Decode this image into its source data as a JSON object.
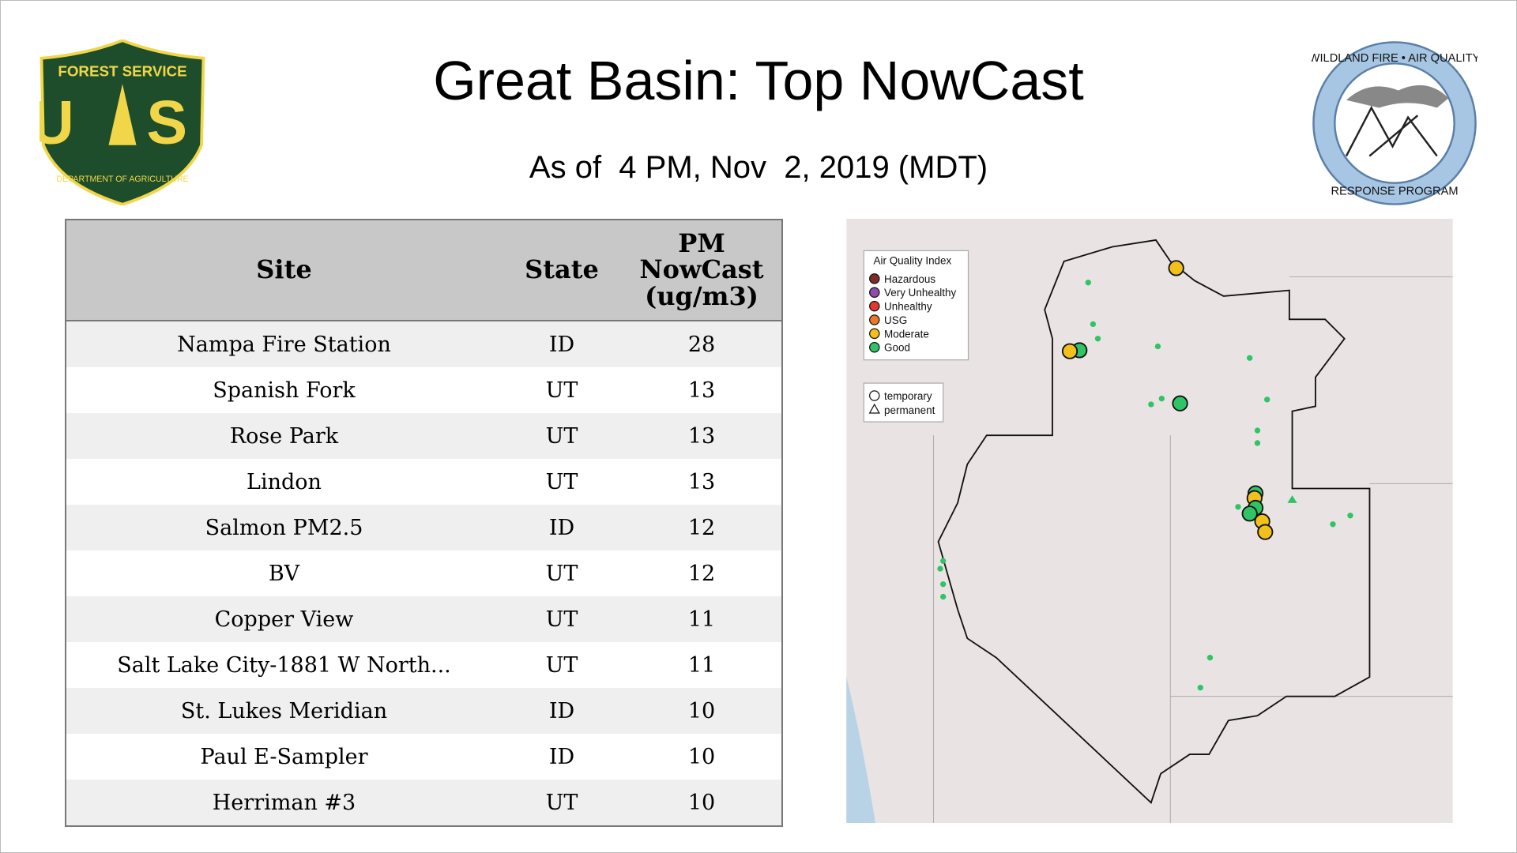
{
  "header": {
    "title": "Great Basin: Top NowCast",
    "subtitle": "As of  4 PM, Nov  2, 2019 (MDT)"
  },
  "logos": {
    "left": {
      "top": "FOREST SERVICE",
      "letters": "U S",
      "bottom": "DEPARTMENT OF AGRICULTURE"
    },
    "right": {
      "top": "WILDLAND FIRE • AIR QUALITY",
      "bottom": "RESPONSE PROGRAM"
    }
  },
  "table": {
    "columns": [
      "Site",
      "State",
      "PM NowCast (ug/m3)"
    ],
    "rows": [
      [
        "Nampa Fire Station",
        "ID",
        28
      ],
      [
        "Spanish Fork",
        "UT",
        13
      ],
      [
        "Rose Park",
        "UT",
        13
      ],
      [
        "Lindon",
        "UT",
        13
      ],
      [
        "Salmon PM2.5",
        "ID",
        12
      ],
      [
        "BV",
        "UT",
        12
      ],
      [
        "Copper View",
        "UT",
        11
      ],
      [
        "Salt Lake City-1881 W North...",
        "UT",
        11
      ],
      [
        "St. Lukes Meridian",
        "ID",
        10
      ],
      [
        "Paul E-Sampler",
        "ID",
        10
      ],
      [
        "Herriman #3",
        "UT",
        10
      ]
    ]
  },
  "map": {
    "legend": {
      "title": "Air Quality Index",
      "items": [
        {
          "label": "Hazardous",
          "color": "#7e2b2b"
        },
        {
          "label": "Very Unhealthy",
          "color": "#8e4cae"
        },
        {
          "label": "Unhealthy",
          "color": "#e0392f"
        },
        {
          "label": "USG",
          "color": "#e8782a"
        },
        {
          "label": "Moderate",
          "color": "#f2c01a"
        },
        {
          "label": "Good",
          "color": "#2fc466"
        }
      ],
      "shapes": [
        "temporary",
        "permanent"
      ]
    }
  }
}
